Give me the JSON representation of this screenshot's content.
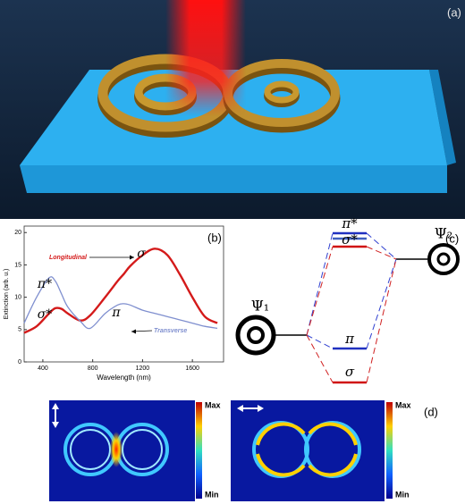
{
  "panel_labels": [
    "(a)",
    "(b)",
    "(c)",
    "(d)"
  ],
  "chart_data": {
    "type": "line",
    "xlabel": "Wavelength (nm)",
    "ylabel": "Extinction (arb. u.)",
    "x": [
      250,
      350,
      450,
      500,
      550,
      600,
      700,
      780,
      900,
      1000,
      1050,
      1100,
      1200,
      1300,
      1400,
      1500,
      1600,
      1700,
      1800
    ],
    "series": [
      {
        "name": "Longitudinal",
        "color": "#d41a1a",
        "values": [
          4.5,
          5.5,
          7.5,
          8.3,
          8.2,
          7.5,
          6.4,
          7.2,
          10,
          12.5,
          13.6,
          14.8,
          16.5,
          17.5,
          16.5,
          13.5,
          10,
          7,
          6
        ]
      },
      {
        "name": "Transverse",
        "color": "#7f8fcf",
        "values": [
          6,
          10,
          13,
          12.5,
          10.5,
          8.5,
          6.3,
          5.2,
          7.5,
          8.8,
          9,
          8.8,
          8,
          7.5,
          7,
          6.5,
          6,
          5.5,
          5.2
        ]
      }
    ],
    "annotations": [
      "π*",
      "σ*",
      "π",
      "σ"
    ],
    "xlim": [
      250,
      1850
    ],
    "ylim": [
      0,
      21
    ],
    "xticks": [
      400,
      800,
      1200,
      1600
    ],
    "yticks": [
      0,
      5,
      10,
      15,
      20
    ]
  },
  "diagram": {
    "levels": [
      "π*",
      "σ*",
      "π",
      "σ"
    ],
    "states": [
      "Ψ₁",
      "Ψ₂"
    ]
  },
  "field_maps": [
    {
      "max": "Max",
      "min": "Min"
    },
    {
      "max": "Max",
      "min": "Min"
    }
  ]
}
